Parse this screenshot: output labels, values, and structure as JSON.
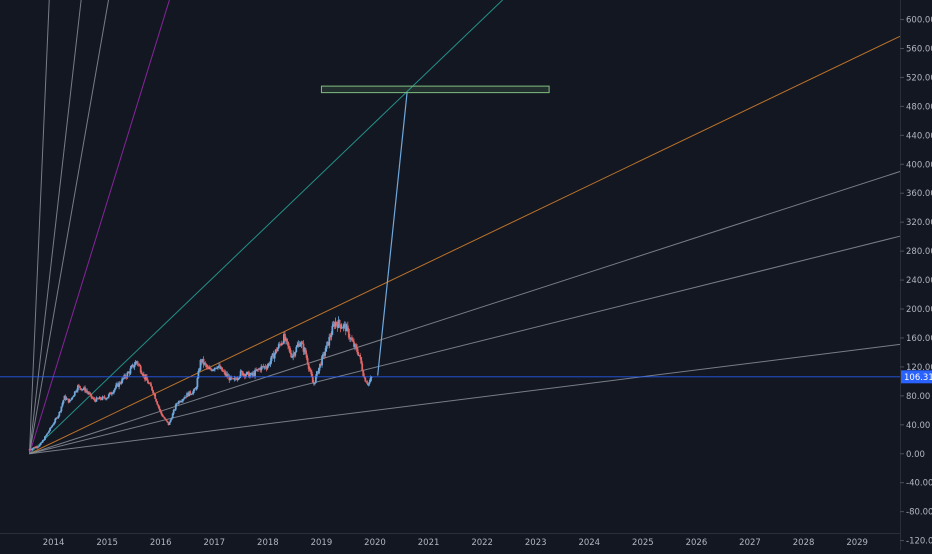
{
  "chart_data": {
    "type": "candlestick",
    "colors": {
      "background": "#131722",
      "up": "#6fa8dc",
      "down": "#e06666",
      "price_line": "#2962ff",
      "arrow": "#6fa8dc",
      "target_box": "#7fbf7f",
      "fan_orange": "#d9822b",
      "fan_purple": "#9c27b0",
      "fan_teal": "#26a69a",
      "fan_gray": "#8a8f98"
    },
    "x_axis": {
      "tick_labels": [
        "2014",
        "2015",
        "2016",
        "2017",
        "2018",
        "2019",
        "2020",
        "2021",
        "2022",
        "2023",
        "2024",
        "2025",
        "2026",
        "2027",
        "2028",
        "2029"
      ],
      "range": [
        2013.0,
        2029.8
      ]
    },
    "y_axis": {
      "tick_values": [
        600,
        560,
        520,
        480,
        440,
        400,
        360,
        320,
        280,
        240,
        200,
        160,
        120,
        80,
        40,
        0,
        -40,
        -80,
        -120
      ],
      "tick_labels": [
        "600.00",
        "560.00",
        "520.00",
        "480.00",
        "440.00",
        "400.00",
        "360.00",
        "320.00",
        "280.00",
        "240.00",
        "200.00",
        "160.00",
        "120.00",
        "80.00",
        "40.00",
        "0.00",
        "-40.00",
        "-80.00",
        "-120.00"
      ],
      "range": [
        -133,
        627
      ]
    },
    "last_price": {
      "value": 106.31,
      "label": "106.31"
    },
    "price_keypoints": [
      [
        2013.55,
        6
      ],
      [
        2013.75,
        12
      ],
      [
        2013.9,
        30
      ],
      [
        2014.1,
        55
      ],
      [
        2014.2,
        78
      ],
      [
        2014.3,
        72
      ],
      [
        2014.45,
        93
      ],
      [
        2014.6,
        88
      ],
      [
        2014.75,
        74
      ],
      [
        2015.0,
        78
      ],
      [
        2015.2,
        95
      ],
      [
        2015.4,
        112
      ],
      [
        2015.55,
        128
      ],
      [
        2015.7,
        106
      ],
      [
        2015.85,
        88
      ],
      [
        2016.0,
        56
      ],
      [
        2016.15,
        40
      ],
      [
        2016.3,
        70
      ],
      [
        2016.5,
        82
      ],
      [
        2016.65,
        88
      ],
      [
        2016.75,
        130
      ],
      [
        2016.9,
        115
      ],
      [
        2017.05,
        122
      ],
      [
        2017.2,
        110
      ],
      [
        2017.35,
        100
      ],
      [
        2017.5,
        112
      ],
      [
        2017.7,
        108
      ],
      [
        2017.85,
        118
      ],
      [
        2018.0,
        122
      ],
      [
        2018.15,
        142
      ],
      [
        2018.3,
        160
      ],
      [
        2018.45,
        135
      ],
      [
        2018.6,
        155
      ],
      [
        2018.7,
        140
      ],
      [
        2018.85,
        95
      ],
      [
        2018.95,
        118
      ],
      [
        2019.1,
        148
      ],
      [
        2019.25,
        182
      ],
      [
        2019.45,
        175
      ],
      [
        2019.6,
        150
      ],
      [
        2019.7,
        138
      ],
      [
        2019.8,
        105
      ],
      [
        2019.88,
        96
      ],
      [
        2019.94,
        106.31
      ]
    ],
    "gann_fan": {
      "origin": {
        "x": 2013.55,
        "y": 0
      },
      "lines": [
        {
          "color_key": "fan_gray",
          "slope_per_year": 1700
        },
        {
          "color_key": "fan_gray",
          "slope_per_year": 650
        },
        {
          "color_key": "fan_gray",
          "slope_per_year": 425
        },
        {
          "color_key": "fan_purple",
          "slope_per_year": 240
        },
        {
          "color_key": "fan_teal",
          "slope_per_year": 71
        },
        {
          "color_key": "fan_orange",
          "slope_per_year": 35.5
        },
        {
          "color_key": "fan_gray",
          "slope_per_year": 24
        },
        {
          "color_key": "fan_gray",
          "slope_per_year": 18.5
        },
        {
          "color_key": "fan_gray",
          "slope_per_year": 9.3
        }
      ]
    },
    "projection_arrow": {
      "from": {
        "x": 2020.05,
        "y": 108
      },
      "to": {
        "x": 2020.6,
        "y": 500
      }
    },
    "target_box": {
      "x0": 2019.0,
      "x1": 2023.25,
      "y0": 499,
      "y1": 508
    }
  }
}
